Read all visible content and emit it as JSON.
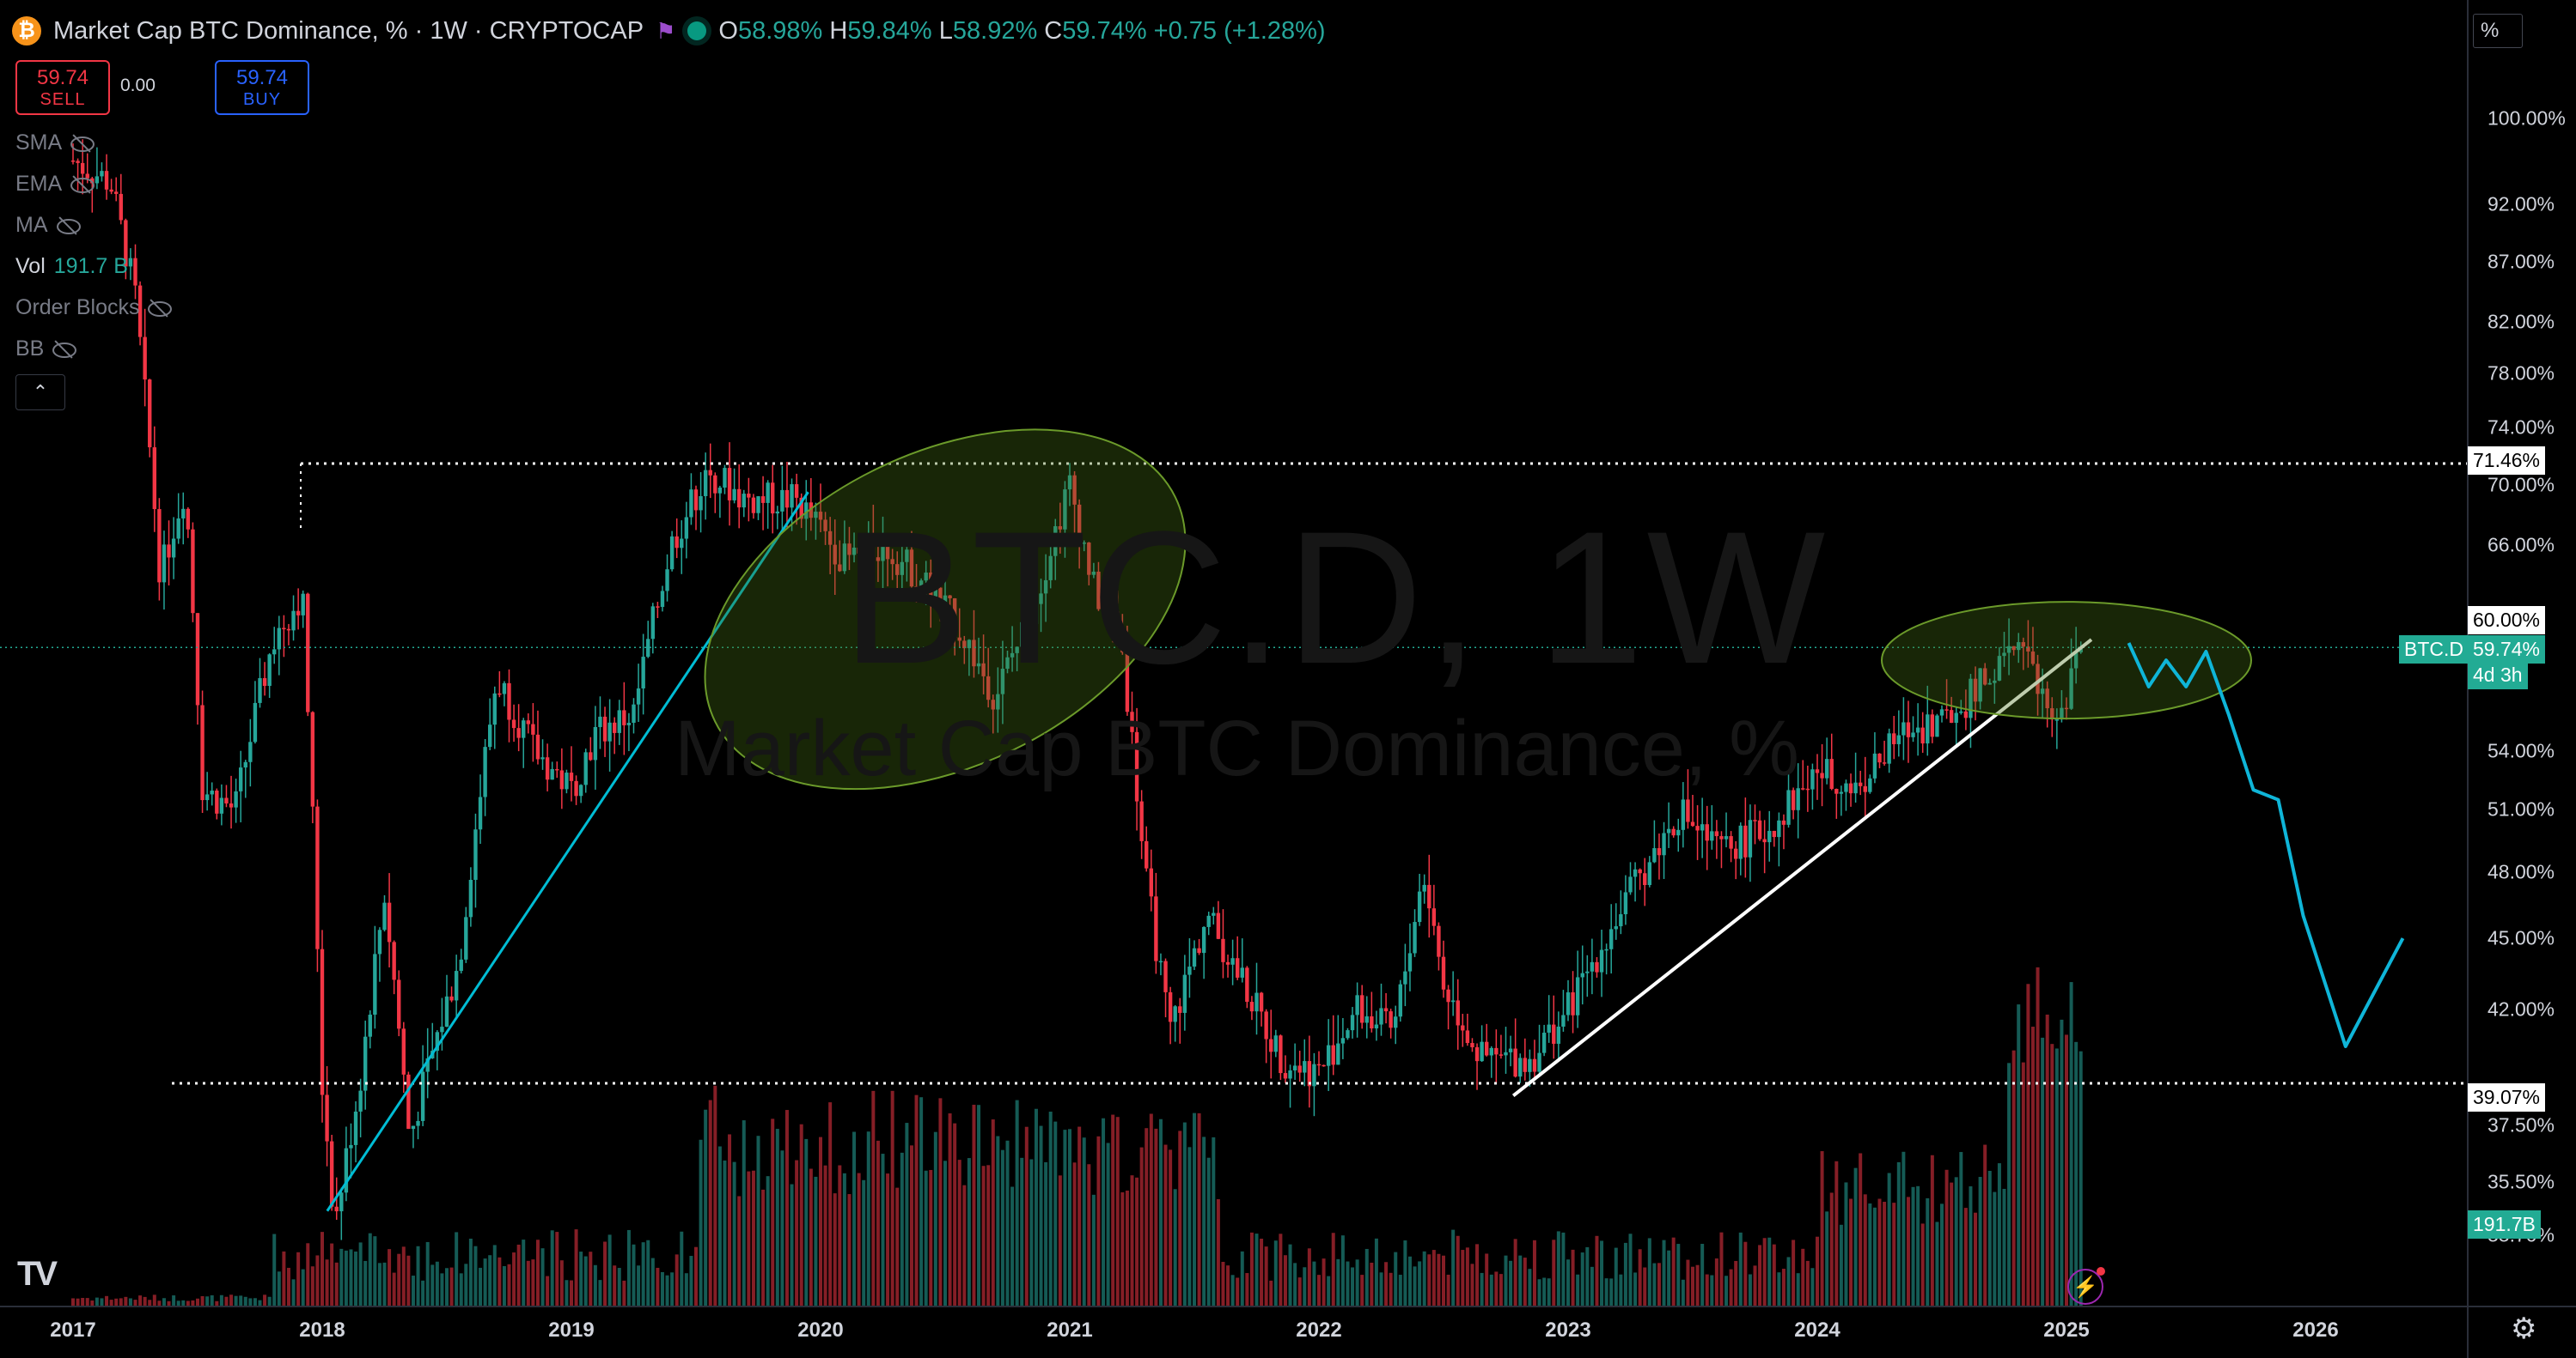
{
  "header": {
    "coin_icon": "bitcoin-icon",
    "coin_glyph": "₿",
    "title": "Market Cap BTC Dominance, % · 1W · CRYPTOCAP",
    "flag_icon": "flag-icon",
    "flag_glyph": "⚑",
    "ohlc": {
      "o_label": "O",
      "o": "58.98%",
      "h_label": "H",
      "h": "59.84%",
      "l_label": "L",
      "l": "58.92%",
      "c_label": "C",
      "c": "59.74%",
      "change": "+0.75 (+1.28%)"
    }
  },
  "trade": {
    "sell_price": "59.74",
    "sell_label": "SELL",
    "spread": "0.00",
    "buy_price": "59.74",
    "buy_label": "BUY"
  },
  "indicators": [
    {
      "label": "SMA",
      "value": "",
      "visible": false
    },
    {
      "label": "EMA",
      "value": "",
      "visible": false
    },
    {
      "label": "MA",
      "value": "",
      "visible": false
    },
    {
      "label": "Vol",
      "value": "191.7 B",
      "visible": true
    },
    {
      "label": "Order Blocks",
      "value": "",
      "visible": false
    },
    {
      "label": "BB",
      "value": "",
      "visible": false
    }
  ],
  "collapse_glyph": "⌃",
  "price_scale_button": "%",
  "watermark": {
    "symbol": "BTC.D, 1W",
    "name": "Market Cap BTC Dominance, %"
  },
  "labels": {
    "level_71": "71.46%",
    "level_60": "60.00%",
    "symbol_tag": "BTC.D",
    "current": "59.74%",
    "countdown": "4d 3h",
    "level_39": "39.07%",
    "volume": "191.7B"
  },
  "settings_glyph": "⚙",
  "tv_logo": "TV",
  "bolt_glyph": "⚡",
  "colors": {
    "background": "#000000",
    "up": "#26a69a",
    "down": "#f23645",
    "trendline_cyan": "#00bcd4",
    "trendline_white": "#ffffff",
    "projection": "#0fb5d8",
    "ellipse": "#3a5a1a",
    "accent_blue": "#2962ff"
  },
  "chart_data": {
    "type": "candlestick",
    "title": "Market Cap BTC Dominance, %",
    "timeframe": "1W",
    "source": "CRYPTOCAP",
    "y_scale": "log",
    "y_ticks": [
      "100.00%",
      "92.00%",
      "87.00%",
      "82.00%",
      "78.00%",
      "74.00%",
      "70.00%",
      "66.00%",
      "60.00%",
      "54.00%",
      "51.00%",
      "48.00%",
      "45.00%",
      "42.00%",
      "39.07%",
      "37.50%",
      "35.50%",
      "33.70%"
    ],
    "x_ticks": [
      "2017",
      "2018",
      "2019",
      "2020",
      "2021",
      "2022",
      "2023",
      "2024",
      "2025",
      "2026"
    ],
    "price_path": [
      {
        "t": 2017.0,
        "v": 96
      },
      {
        "t": 2017.15,
        "v": 94
      },
      {
        "t": 2017.25,
        "v": 84
      },
      {
        "t": 2017.35,
        "v": 64
      },
      {
        "t": 2017.45,
        "v": 70
      },
      {
        "t": 2017.52,
        "v": 52
      },
      {
        "t": 2017.65,
        "v": 51
      },
      {
        "t": 2017.8,
        "v": 60
      },
      {
        "t": 2017.92,
        "v": 63
      },
      {
        "t": 2018.0,
        "v": 39
      },
      {
        "t": 2018.05,
        "v": 34
      },
      {
        "t": 2018.15,
        "v": 39
      },
      {
        "t": 2018.25,
        "v": 47
      },
      {
        "t": 2018.35,
        "v": 37
      },
      {
        "t": 2018.55,
        "v": 44
      },
      {
        "t": 2018.7,
        "v": 58
      },
      {
        "t": 2018.85,
        "v": 54
      },
      {
        "t": 2019.0,
        "v": 52
      },
      {
        "t": 2019.1,
        "v": 55
      },
      {
        "t": 2019.25,
        "v": 56
      },
      {
        "t": 2019.4,
        "v": 66
      },
      {
        "t": 2019.55,
        "v": 71
      },
      {
        "t": 2019.7,
        "v": 69
      },
      {
        "t": 2019.9,
        "v": 69
      },
      {
        "t": 2020.1,
        "v": 65
      },
      {
        "t": 2020.25,
        "v": 66
      },
      {
        "t": 2020.4,
        "v": 64
      },
      {
        "t": 2020.55,
        "v": 61
      },
      {
        "t": 2020.7,
        "v": 57
      },
      {
        "t": 2020.85,
        "v": 62
      },
      {
        "t": 2021.0,
        "v": 70
      },
      {
        "t": 2021.1,
        "v": 63
      },
      {
        "t": 2021.2,
        "v": 61
      },
      {
        "t": 2021.3,
        "v": 48
      },
      {
        "t": 2021.4,
        "v": 41
      },
      {
        "t": 2021.55,
        "v": 46
      },
      {
        "t": 2021.7,
        "v": 43
      },
      {
        "t": 2021.85,
        "v": 40
      },
      {
        "t": 2022.0,
        "v": 39.5
      },
      {
        "t": 2022.15,
        "v": 42
      },
      {
        "t": 2022.3,
        "v": 41
      },
      {
        "t": 2022.42,
        "v": 48
      },
      {
        "t": 2022.5,
        "v": 43
      },
      {
        "t": 2022.65,
        "v": 40
      },
      {
        "t": 2022.85,
        "v": 40
      },
      {
        "t": 2023.0,
        "v": 42
      },
      {
        "t": 2023.1,
        "v": 44
      },
      {
        "t": 2023.25,
        "v": 47
      },
      {
        "t": 2023.45,
        "v": 51
      },
      {
        "t": 2023.6,
        "v": 49
      },
      {
        "t": 2023.8,
        "v": 50
      },
      {
        "t": 2024.0,
        "v": 53
      },
      {
        "t": 2024.15,
        "v": 52
      },
      {
        "t": 2024.35,
        "v": 55
      },
      {
        "t": 2024.55,
        "v": 56
      },
      {
        "t": 2024.75,
        "v": 59
      },
      {
        "t": 2024.85,
        "v": 60
      },
      {
        "t": 2024.93,
        "v": 55
      },
      {
        "t": 2025.0,
        "v": 57
      },
      {
        "t": 2025.06,
        "v": 59.74
      }
    ],
    "projection": [
      {
        "t": 2025.25,
        "v": 60
      },
      {
        "t": 2025.33,
        "v": 57.5
      },
      {
        "t": 2025.4,
        "v": 59
      },
      {
        "t": 2025.48,
        "v": 57.5
      },
      {
        "t": 2025.56,
        "v": 59.5
      },
      {
        "t": 2025.65,
        "v": 56
      },
      {
        "t": 2025.75,
        "v": 52
      },
      {
        "t": 2025.85,
        "v": 51.5
      },
      {
        "t": 2025.95,
        "v": 46
      },
      {
        "t": 2026.12,
        "v": 40.5
      },
      {
        "t": 2026.35,
        "v": 45
      }
    ],
    "horizontal_levels": [
      71.46,
      60.0,
      59.74,
      39.07
    ],
    "volume_last": "191.7B"
  }
}
